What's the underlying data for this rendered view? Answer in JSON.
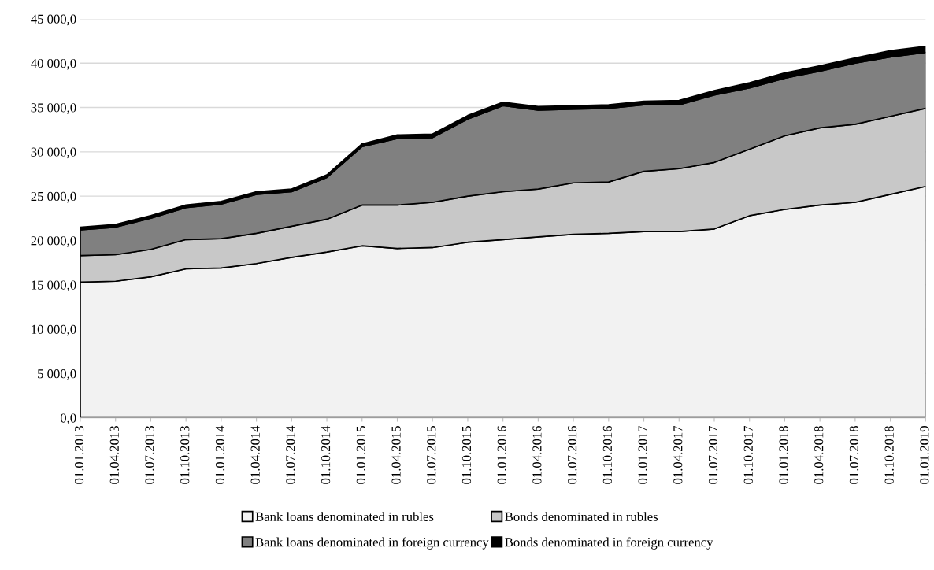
{
  "chart_data": {
    "type": "area",
    "stacked": true,
    "categories": [
      "01.01.2013",
      "01.04.2013",
      "01.07.2013",
      "01.10.2013",
      "01.01.2014",
      "01.04.2014",
      "01.07.2014",
      "01.10.2014",
      "01.01.2015",
      "01.04.2015",
      "01.07.2015",
      "01.10.2015",
      "01.01.2016",
      "01.04.2016",
      "01.07.2016",
      "01.10.2016",
      "01.01.2017",
      "01.04.2017",
      "01.07.2017",
      "01.10.2017",
      "01.01.2018",
      "01.04.2018",
      "01.07.2018",
      "01.10.2018",
      "01.01.2019"
    ],
    "series": [
      {
        "name": "Bank loans denominated in rubles",
        "color": "#f2f2f2",
        "values": [
          15300,
          15400,
          15900,
          16800,
          16900,
          17400,
          18100,
          18700,
          19400,
          19100,
          19200,
          19800,
          20100,
          20400,
          20700,
          20800,
          21000,
          21000,
          21300,
          22800,
          23500,
          24000,
          24300,
          25200,
          26100
        ]
      },
      {
        "name": "Bonds denominated in rubles",
        "color": "#c8c8c8",
        "values": [
          3000,
          3000,
          3100,
          3300,
          3300,
          3400,
          3500,
          3700,
          4600,
          4900,
          5100,
          5200,
          5400,
          5400,
          5800,
          5800,
          6800,
          7100,
          7500,
          7500,
          8300,
          8700,
          8800,
          8800,
          8800
        ]
      },
      {
        "name": "Bank loans denominated in foreign currency",
        "color": "#808080",
        "values": [
          2900,
          3100,
          3500,
          3600,
          3900,
          4400,
          3900,
          4700,
          6600,
          7500,
          7300,
          8700,
          9700,
          8900,
          8300,
          8300,
          7500,
          7200,
          7600,
          6900,
          6500,
          6400,
          6900,
          6700,
          6300
        ]
      },
      {
        "name": "Bonds denominated in foreign currency",
        "color": "#000000",
        "values": [
          300,
          300,
          300,
          300,
          300,
          300,
          300,
          300,
          300,
          400,
          400,
          400,
          400,
          400,
          400,
          400,
          400,
          500,
          500,
          600,
          600,
          600,
          600,
          700,
          700
        ]
      }
    ],
    "ylim": [
      0,
      45000
    ],
    "yticks": [
      {
        "value": 0,
        "label": "0,0"
      },
      {
        "value": 5000,
        "label": "5 000,0"
      },
      {
        "value": 10000,
        "label": "10 000,0"
      },
      {
        "value": 15000,
        "label": "15 000,0"
      },
      {
        "value": 20000,
        "label": "20 000,0"
      },
      {
        "value": 25000,
        "label": "25 000,0"
      },
      {
        "value": 30000,
        "label": "30 000,0"
      },
      {
        "value": 35000,
        "label": "35 000,0"
      },
      {
        "value": 40000,
        "label": "40 000,0"
      },
      {
        "value": 45000,
        "label": "45 000,0"
      }
    ],
    "grid": "y",
    "legend": "bottom"
  }
}
